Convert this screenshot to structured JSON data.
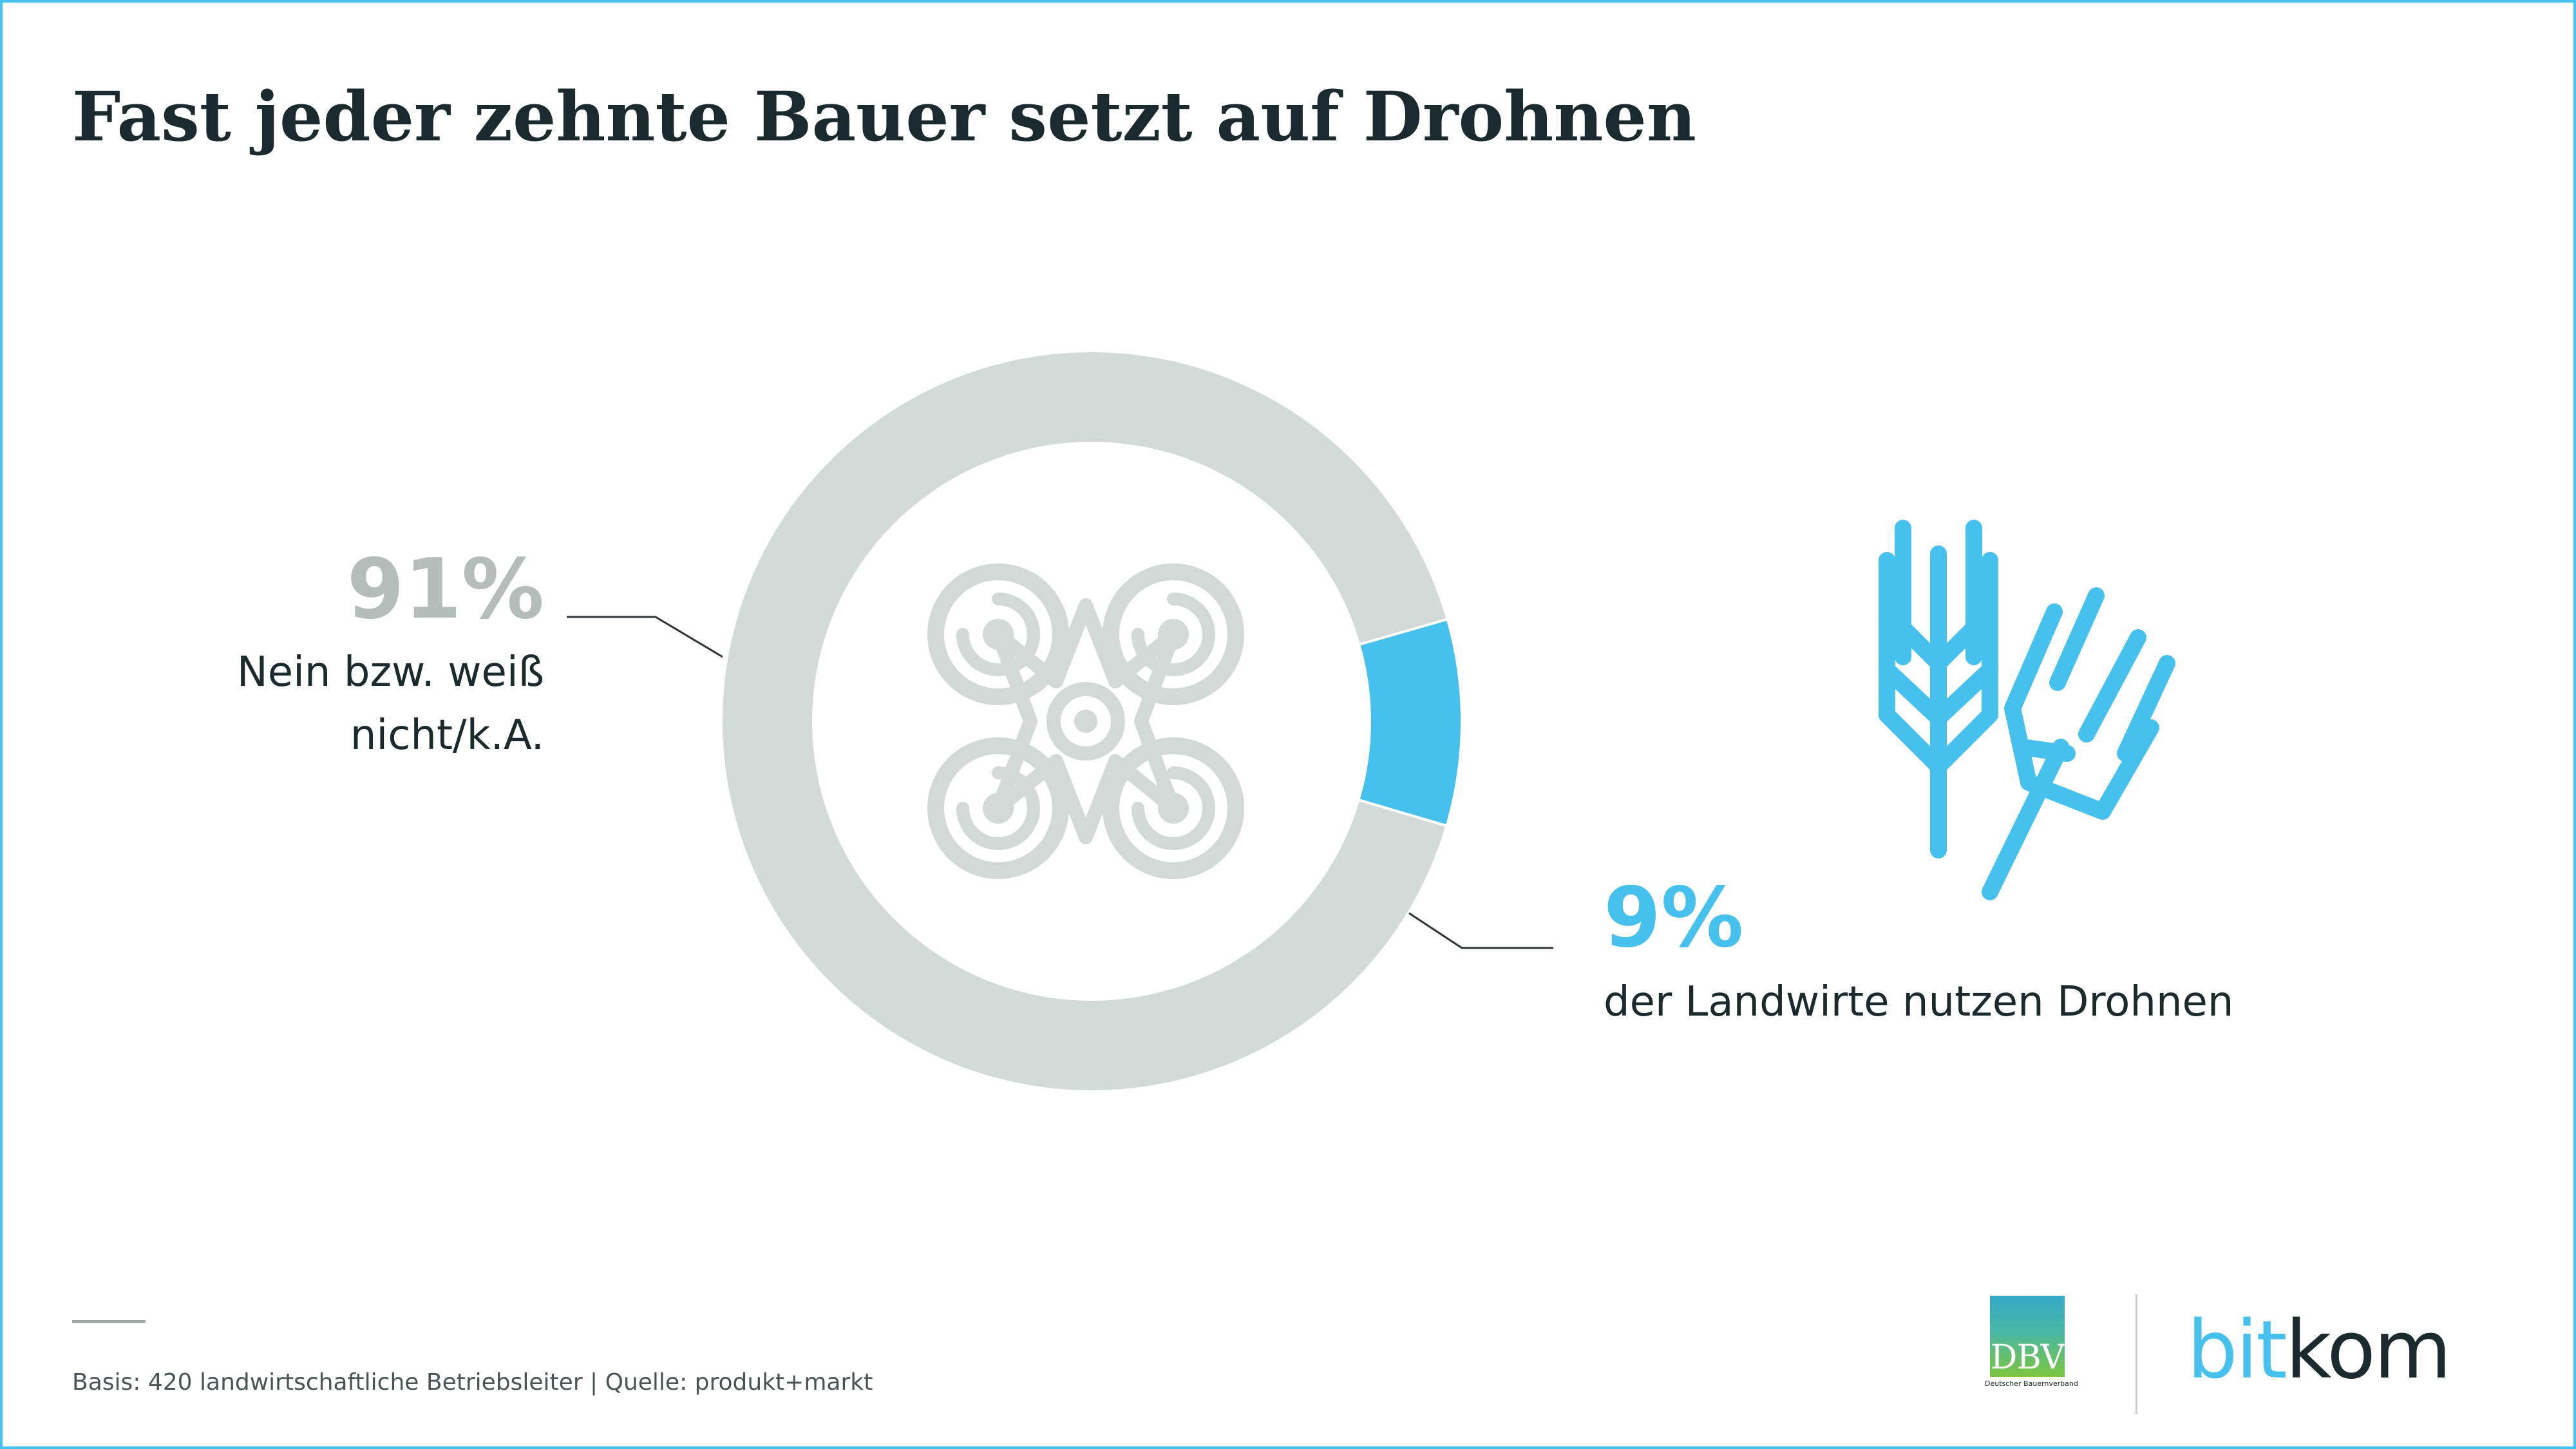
{
  "title": "Fast jeder zehnte Bauer setzt auf Drohnen",
  "chart_data": {
    "type": "pie",
    "title": "Fast jeder zehnte Bauer setzt auf Drohnen",
    "categories": [
      "Nein bzw. weiß nicht/k.A.",
      "der Landwirte nutzen Drohnen"
    ],
    "values": [
      91,
      9
    ],
    "value_labels": [
      "91%",
      "9%"
    ],
    "colors": [
      "#d3dbd9",
      "#46c1ee"
    ],
    "unit": "%",
    "donut": true
  },
  "labels": {
    "left_percent": "91%",
    "left_line1": "Nein bzw. weiß",
    "left_line2": "nicht/k.A.",
    "right_percent": "9%",
    "right_text": "der Landwirte nutzen Drohnen"
  },
  "icons": {
    "center": "drone-icon",
    "side": "wheat-icon"
  },
  "footnote": "Basis: 420 landwirtschaftliche Betriebsleiter | Quelle: produkt+markt",
  "logos": {
    "dbv": "DBV",
    "dbv_subtitle": "Deutscher Bauernverband",
    "bitkom_part1": "bit",
    "bitkom_part2": "kom"
  },
  "colors": {
    "accent": "#46c1ee",
    "gray_segment": "#d3dbd9",
    "icon_gray": "#d2d9d7",
    "text": "#1b2a2e"
  }
}
